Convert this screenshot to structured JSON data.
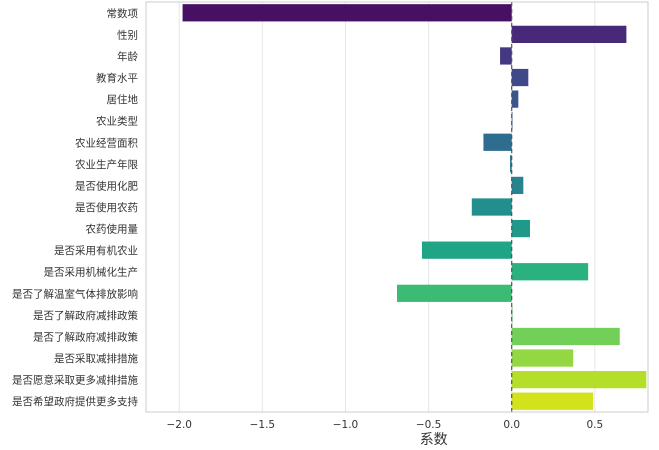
{
  "chart_data": {
    "type": "bar",
    "orientation": "horizontal",
    "title": "",
    "xlabel": "系数",
    "ylabel": "",
    "xlim": [
      -2.2,
      0.82
    ],
    "xticks": [
      -2.0,
      -1.5,
      -1.0,
      -0.5,
      0.0,
      0.5
    ],
    "xtick_labels": [
      "−2.0",
      "−1.5",
      "−1.0",
      "−0.5",
      "0.0",
      "0.5"
    ],
    "grid": "vertical",
    "reference_line": {
      "x": 0,
      "style": "dashed"
    },
    "categories": [
      "常数项",
      "性别",
      "年龄",
      "教育水平",
      "居住地",
      "农业类型",
      "农业经营面积",
      "农业生产年限",
      "是否使用化肥",
      "是否使用农药",
      "农药使用量",
      "是否采用有机农业",
      "是否采用机械化生产",
      "是否了解温室气体排放影响",
      "是否了解政府减排政策",
      "是否了解政府减排政策",
      "是否采取减排措施",
      "是否愿意采取更多减排措施",
      "是否希望政府提供更多支持"
    ],
    "values": [
      -1.98,
      0.69,
      -0.07,
      0.1,
      0.04,
      0.0,
      -0.17,
      -0.01,
      0.07,
      -0.24,
      0.11,
      -0.54,
      0.46,
      -0.69,
      0.0,
      0.65,
      0.37,
      0.81,
      0.49
    ],
    "colors": [
      "#471063",
      "#482979",
      "#453882",
      "#3f4889",
      "#3a568c",
      "#34628d",
      "#2f6d8e",
      "#2b788e",
      "#26838f",
      "#228e8d",
      "#1f998a",
      "#20a486",
      "#2bb07f",
      "#3cbb75",
      "#55c568",
      "#72cf57",
      "#93d742",
      "#b5de2b",
      "#d2e21b"
    ]
  }
}
